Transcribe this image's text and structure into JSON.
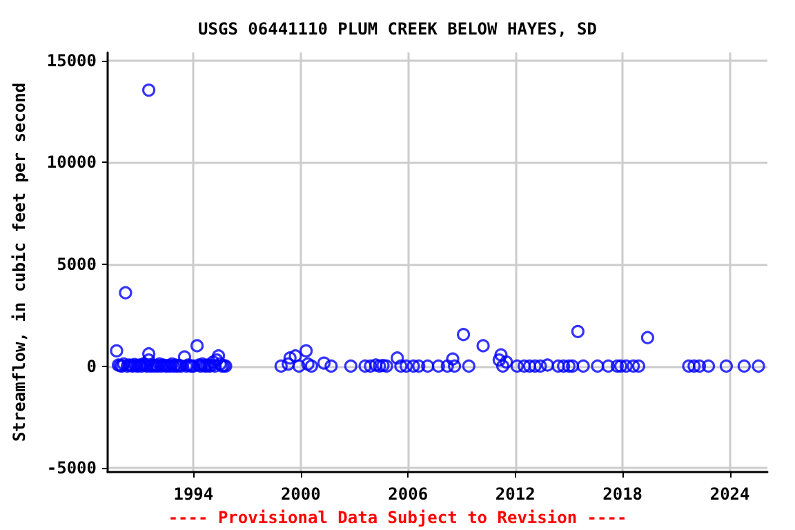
{
  "chart_data": {
    "type": "scatter",
    "title": "USGS 06441110 PLUM CREEK BELOW HAYES, SD",
    "ylabel": "Streamflow, in cubic feet per second",
    "annotations": [
      "---- Provisional Data Subject to Revision ----"
    ],
    "series": [
      {
        "color": "#0000ff",
        "x": [
          1989.7,
          1989.8,
          1989.9,
          1990.0,
          1990.1,
          1990.2,
          1990.3,
          1990.4,
          1990.5,
          1990.6,
          1990.7,
          1990.8,
          1990.9,
          1991.0,
          1991.1,
          1991.2,
          1991.3,
          1991.4,
          1991.5,
          1991.5,
          1991.5,
          1991.6,
          1991.7,
          1991.8,
          1991.9,
          1992.0,
          1992.1,
          1992.2,
          1992.3,
          1992.4,
          1992.5,
          1992.6,
          1992.7,
          1992.8,
          1992.9,
          1993.0,
          1993.1,
          1993.2,
          1993.3,
          1993.5,
          1993.6,
          1993.7,
          1993.8,
          1993.9,
          1994.0,
          1994.2,
          1994.3,
          1994.4,
          1994.5,
          1994.6,
          1994.7,
          1994.8,
          1994.9,
          1995.0,
          1995.1,
          1995.2,
          1995.3,
          1995.4,
          1995.5,
          1995.6,
          1995.7,
          1995.8,
          1998.9,
          1999.3,
          1999.4,
          1999.7,
          1999.9,
          2000.3,
          2000.4,
          2000.6,
          2001.3,
          2001.7,
          2002.8,
          2003.6,
          2003.9,
          2004.2,
          2004.4,
          2004.6,
          2004.8,
          2005.4,
          2005.6,
          2005.9,
          2006.3,
          2006.6,
          2007.1,
          2007.7,
          2008.2,
          2008.5,
          2008.6,
          2009.1,
          2009.4,
          2010.2,
          2011.1,
          2011.2,
          2011.3,
          2011.5,
          2012.1,
          2012.5,
          2012.8,
          2013.1,
          2013.4,
          2013.8,
          2014.4,
          2014.7,
          2015.0,
          2015.2,
          2015.5,
          2015.8,
          2016.6,
          2017.2,
          2017.7,
          2017.9,
          2018.2,
          2018.6,
          2018.9,
          2019.4,
          2021.7,
          2022.0,
          2022.3,
          2022.8,
          2023.8,
          2024.8,
          2025.6
        ],
        "values": [
          750,
          50,
          20,
          0,
          100,
          3600,
          0,
          50,
          30,
          0,
          80,
          20,
          0,
          50,
          0,
          100,
          30,
          0,
          13550,
          600,
          300,
          0,
          50,
          0,
          30,
          0,
          100,
          0,
          50,
          20,
          0,
          30,
          0,
          100,
          0,
          50,
          0,
          30,
          0,
          450,
          0,
          50,
          20,
          0,
          0,
          1000,
          50,
          0,
          100,
          20,
          0,
          50,
          0,
          30,
          200,
          0,
          300,
          500,
          100,
          0,
          20,
          0,
          0,
          100,
          400,
          500,
          0,
          750,
          100,
          0,
          150,
          0,
          0,
          0,
          0,
          50,
          0,
          30,
          0,
          400,
          0,
          0,
          0,
          0,
          0,
          0,
          0,
          350,
          0,
          1550,
          0,
          1000,
          300,
          550,
          0,
          200,
          0,
          0,
          0,
          0,
          0,
          50,
          0,
          0,
          0,
          0,
          1700,
          0,
          0,
          0,
          0,
          0,
          0,
          0,
          0,
          1400,
          0,
          0,
          0,
          0,
          0,
          0,
          0
        ]
      }
    ],
    "marker": "circle",
    "grid": true,
    "xlim": [
      1989.2,
      2026.1
    ],
    "xticks": [
      1994,
      2000,
      2006,
      2012,
      2018,
      2024
    ],
    "ylim": [
      -5200,
      15400
    ],
    "yticks": [
      -5000,
      0,
      5000,
      10000,
      15000
    ]
  }
}
